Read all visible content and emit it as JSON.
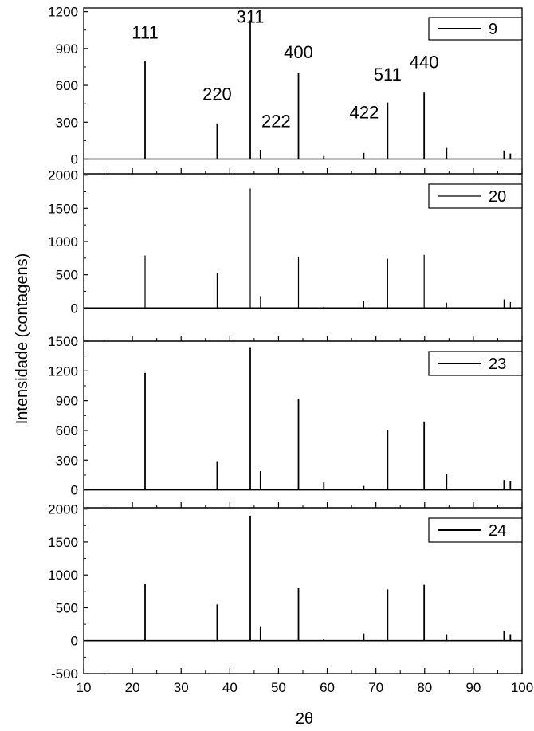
{
  "chart_data": {
    "type": "line",
    "xlabel": "2θ",
    "ylabel": "Intensidade (contagens)",
    "xlim": [
      10,
      100
    ],
    "x_ticks": [
      10,
      20,
      30,
      40,
      50,
      60,
      70,
      80,
      90,
      100
    ],
    "x_tick_labels": [
      "10",
      "20",
      "30",
      "40",
      "50",
      "60",
      "70",
      "80",
      "90",
      "100"
    ],
    "panels": [
      {
        "legend": "9",
        "ylim": [
          -120,
          1230
        ],
        "y_ticks": [
          0,
          300,
          600,
          900,
          1200
        ],
        "y_tick_labels": [
          "0",
          "300",
          "600",
          "900",
          "1200"
        ],
        "peaks": [
          {
            "x": 22.6,
            "y": 800
          },
          {
            "x": 37.4,
            "y": 290
          },
          {
            "x": 44.2,
            "y": 1130
          },
          {
            "x": 46.3,
            "y": 75
          },
          {
            "x": 54.1,
            "y": 700
          },
          {
            "x": 59.3,
            "y": 25
          },
          {
            "x": 67.5,
            "y": 50
          },
          {
            "x": 72.4,
            "y": 460
          },
          {
            "x": 79.9,
            "y": 540
          },
          {
            "x": 84.5,
            "y": 90
          },
          {
            "x": 96.3,
            "y": 70
          },
          {
            "x": 97.6,
            "y": 45
          }
        ],
        "annotations": [
          {
            "text": "111",
            "x": 22.6,
            "y": 980
          },
          {
            "text": "220",
            "x": 37.4,
            "y": 480
          },
          {
            "text": "311",
            "x": 44.2,
            "y": 1110
          },
          {
            "text": "222",
            "x": 49.5,
            "y": 260
          },
          {
            "text": "400",
            "x": 54.1,
            "y": 820
          },
          {
            "text": "422",
            "x": 67.6,
            "y": 330
          },
          {
            "text": "511",
            "x": 72.4,
            "y": 640
          },
          {
            "text": "440",
            "x": 79.9,
            "y": 740
          }
        ]
      },
      {
        "legend": "20",
        "ylim": [
          -500,
          2020
        ],
        "y_ticks": [
          0,
          500,
          1000,
          1500,
          2000
        ],
        "y_tick_labels": [
          "0",
          "500",
          "1000",
          "1500",
          "2000"
        ],
        "peaks": [
          {
            "x": 22.6,
            "y": 790
          },
          {
            "x": 37.4,
            "y": 530
          },
          {
            "x": 44.2,
            "y": 1800
          },
          {
            "x": 46.3,
            "y": 180
          },
          {
            "x": 54.1,
            "y": 760
          },
          {
            "x": 59.3,
            "y": 20
          },
          {
            "x": 67.5,
            "y": 110
          },
          {
            "x": 72.4,
            "y": 740
          },
          {
            "x": 79.9,
            "y": 800
          },
          {
            "x": 84.5,
            "y": 80
          },
          {
            "x": 96.3,
            "y": 130
          },
          {
            "x": 97.6,
            "y": 90
          }
        ]
      },
      {
        "legend": "23",
        "ylim": [
          -180,
          1500
        ],
        "y_ticks": [
          0,
          300,
          600,
          900,
          1200,
          1500
        ],
        "y_tick_labels": [
          "0",
          "300",
          "600",
          "900",
          "1200",
          "1500"
        ],
        "peaks": [
          {
            "x": 22.6,
            "y": 1180
          },
          {
            "x": 37.4,
            "y": 290
          },
          {
            "x": 44.2,
            "y": 1440
          },
          {
            "x": 46.3,
            "y": 190
          },
          {
            "x": 54.1,
            "y": 920
          },
          {
            "x": 59.3,
            "y": 75
          },
          {
            "x": 67.5,
            "y": 40
          },
          {
            "x": 72.4,
            "y": 600
          },
          {
            "x": 79.9,
            "y": 690
          },
          {
            "x": 84.5,
            "y": 160
          },
          {
            "x": 96.3,
            "y": 100
          },
          {
            "x": 97.6,
            "y": 90
          }
        ]
      },
      {
        "legend": "24",
        "ylim": [
          -500,
          2020
        ],
        "y_ticks": [
          -500,
          0,
          500,
          1000,
          1500,
          2000
        ],
        "y_tick_labels": [
          "-500",
          "0",
          "500",
          "1000",
          "1500",
          "2000"
        ],
        "peaks": [
          {
            "x": 22.6,
            "y": 870
          },
          {
            "x": 37.4,
            "y": 550
          },
          {
            "x": 44.2,
            "y": 1900
          },
          {
            "x": 46.3,
            "y": 220
          },
          {
            "x": 54.1,
            "y": 800
          },
          {
            "x": 59.3,
            "y": 25
          },
          {
            "x": 67.5,
            "y": 110
          },
          {
            "x": 72.4,
            "y": 780
          },
          {
            "x": 79.9,
            "y": 850
          },
          {
            "x": 84.5,
            "y": 100
          },
          {
            "x": 96.3,
            "y": 150
          },
          {
            "x": 97.6,
            "y": 100
          }
        ]
      }
    ]
  }
}
